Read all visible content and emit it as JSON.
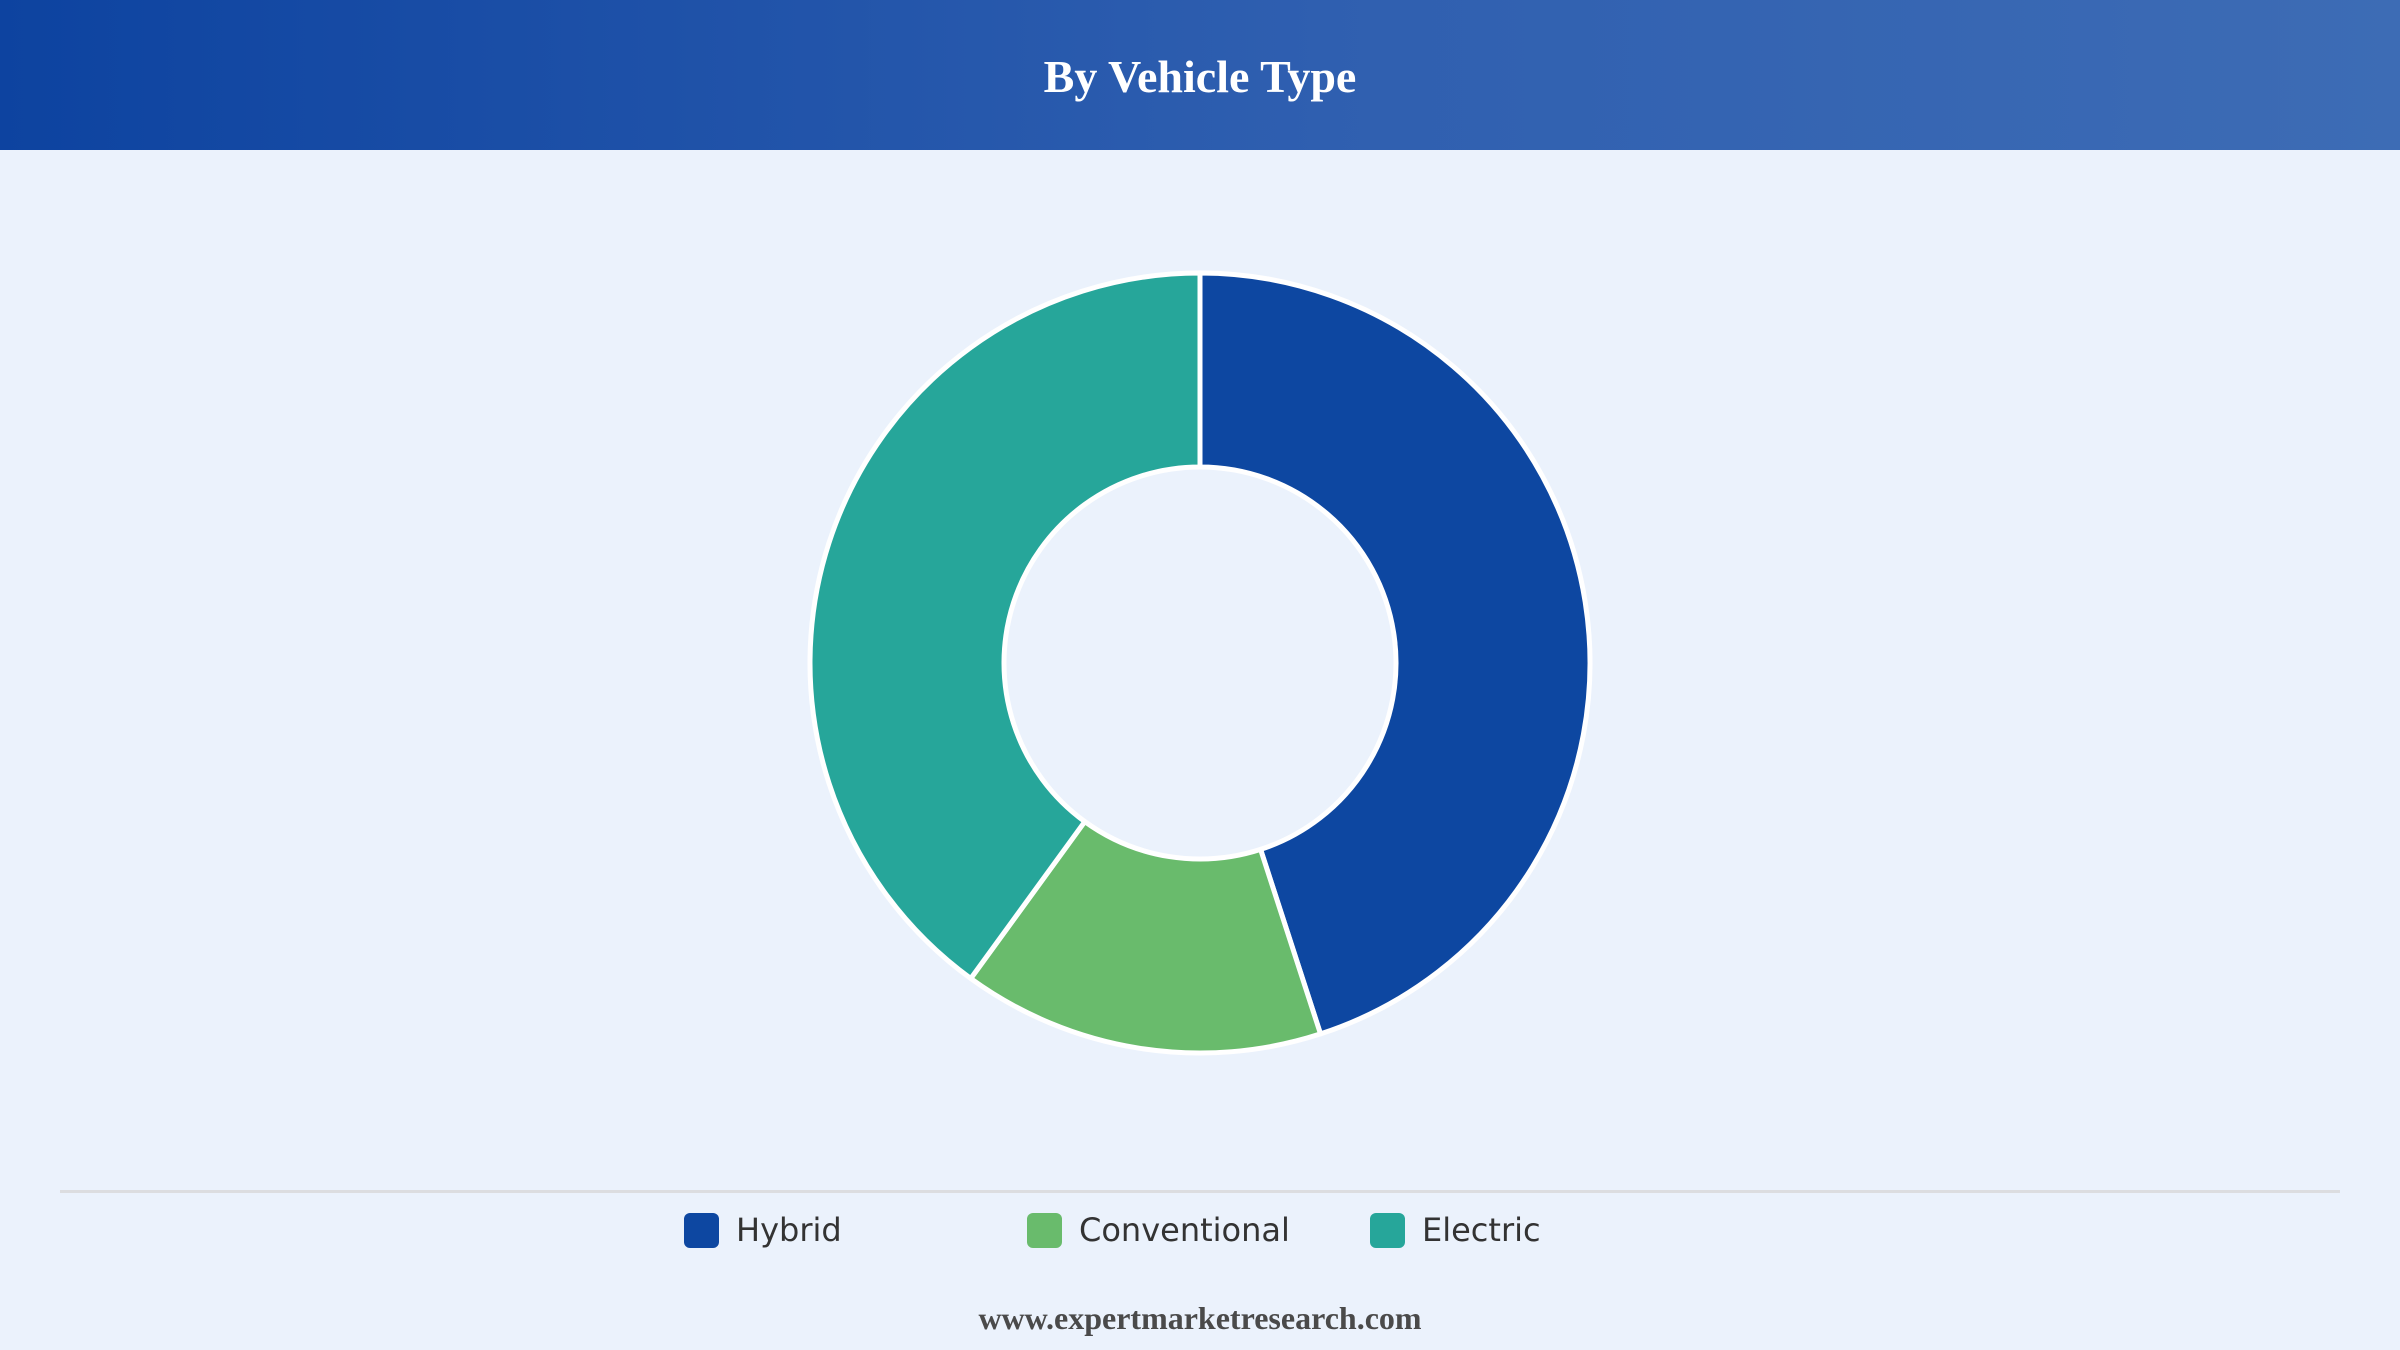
{
  "title": "By Vehicle Type",
  "footer": "www.expertmarketresearch.com",
  "colors": {
    "Hybrid": "#0d47a1",
    "Conventional": "#69bb6c",
    "Electric": "#26a69a",
    "background": "#ebf2fc",
    "slice_border": "#ffffff"
  },
  "legend": [
    {
      "label": "Hybrid"
    },
    {
      "label": "Conventional"
    },
    {
      "label": "Electric"
    }
  ],
  "chart_data": {
    "type": "pie",
    "variant": "donut",
    "title": "By Vehicle Type",
    "categories": [
      "Hybrid",
      "Conventional",
      "Electric"
    ],
    "values": [
      45,
      15,
      40
    ],
    "unit": "%",
    "start_angle_deg": 0,
    "direction": "clockwise",
    "legend_position": "bottom"
  }
}
